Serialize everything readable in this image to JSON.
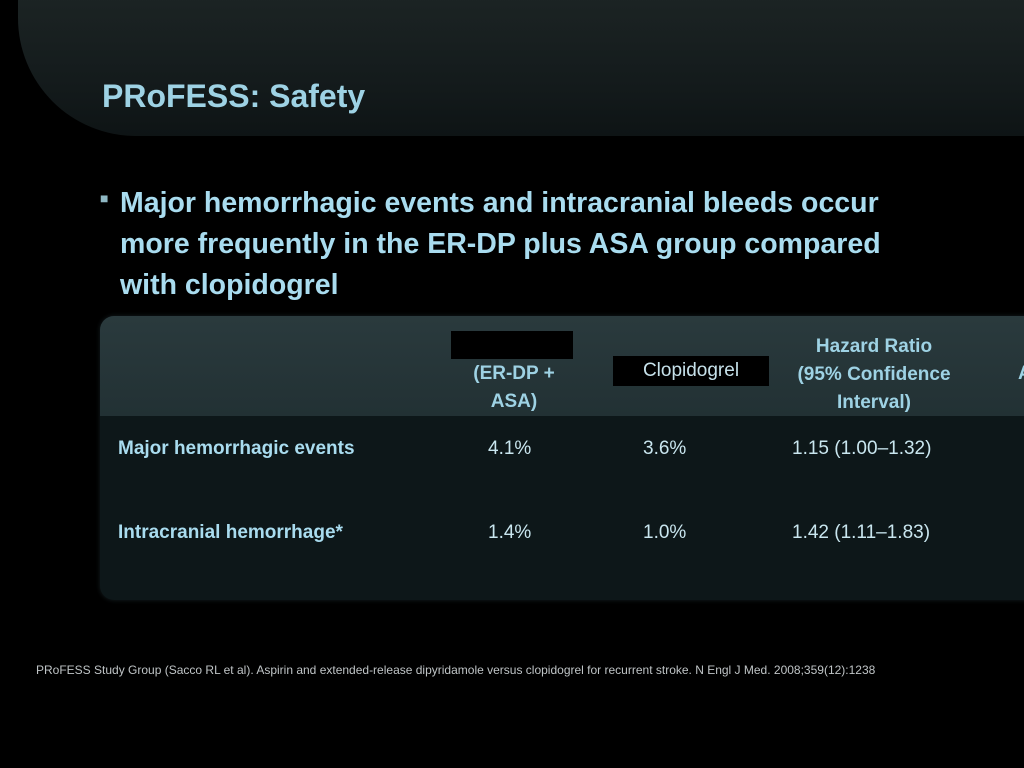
{
  "slide": {
    "title": "PRoFESS: Safety",
    "bullet": {
      "lines": [
        "Major hemorrhagic events and intracranial bleeds occur",
        "more frequently in the ER-DP plus ASA group compared",
        "with clopidogrel"
      ]
    }
  },
  "table": {
    "headers": {
      "col1_lines": [
        "(ER-DP +",
        "ASA)"
      ],
      "col2": "Clopidogrel",
      "col3_lines": [
        "Hazard Ratio",
        "(95% Confidence",
        "Interval)"
      ],
      "col4_partial": "A"
    },
    "rows": [
      {
        "label": "Major hemorrhagic events",
        "erdp_asa": "4.1%",
        "clopidogrel": "3.6%",
        "hazard_ratio": "1.15 (1.00–1.32)"
      },
      {
        "label": "Intracranial hemorrhage*",
        "erdp_asa": "1.4%",
        "clopidogrel": "1.0%",
        "hazard_ratio": "1.42 (1.11–1.83)"
      }
    ]
  },
  "footer": {
    "reference": "PRoFESS Study Group (Sacco RL et al). Aspirin and extended-release dipyridamole versus clopidogrel for recurrent stroke. N Engl J Med. 2008;359(12):1238"
  },
  "colors": {
    "background": "#000000",
    "title": "#9ed2e4",
    "header_band": "#2a3a3d"
  }
}
